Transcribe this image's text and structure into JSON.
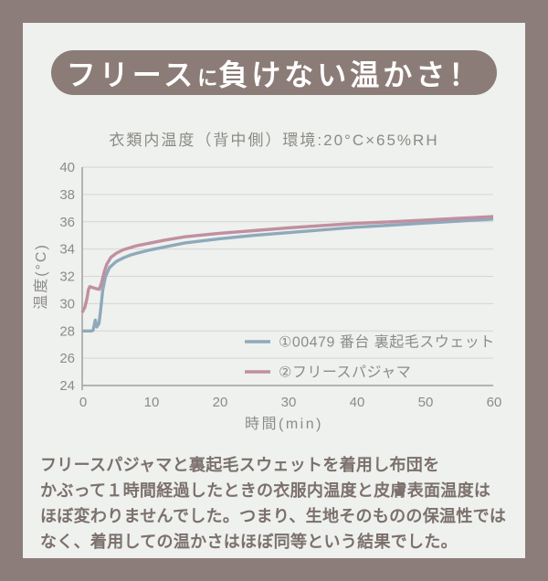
{
  "page": {
    "background": "#8d7d7a",
    "panel_background": "#eef1ee"
  },
  "header": {
    "title_part1": "フリース",
    "title_part2": "に",
    "title_part3": "負けない温かさ！",
    "pill_color": "#8c7c77",
    "text_color": "#ffffff"
  },
  "subtitle": "衣類内温度（背中側）環境:20°C×65%RH",
  "chart_data": {
    "type": "line",
    "title": "衣類内温度（背中側）環境:20°C×65%RH",
    "xlabel": "時間(min)",
    "ylabel": "温度(°C)",
    "xlim": [
      0,
      60
    ],
    "ylim": [
      24,
      40
    ],
    "xticks": [
      0,
      10,
      20,
      30,
      40,
      50,
      60
    ],
    "yticks": [
      24,
      26,
      28,
      30,
      32,
      34,
      36,
      38,
      40
    ],
    "grid": "horizontal",
    "legend_position": "inside-bottom-right",
    "axis_color": "#abaaa7",
    "grid_color": "#d6d5d3",
    "tick_color": "#8d8b88",
    "series": [
      {
        "name": "①00479 番台 裏起毛スウェット",
        "color": "#8fa9bb",
        "points": [
          [
            0,
            28.0
          ],
          [
            1.4,
            28.0
          ],
          [
            1.6,
            28.05
          ],
          [
            1.9,
            28.8
          ],
          [
            2.15,
            28.3
          ],
          [
            2.45,
            28.55
          ],
          [
            2.7,
            29.6
          ],
          [
            3.0,
            31.0
          ],
          [
            3.4,
            32.0
          ],
          [
            4.0,
            32.65
          ],
          [
            5,
            33.1
          ],
          [
            6,
            33.35
          ],
          [
            7,
            33.55
          ],
          [
            8,
            33.7
          ],
          [
            10,
            33.95
          ],
          [
            12,
            34.15
          ],
          [
            15,
            34.45
          ],
          [
            20,
            34.75
          ],
          [
            25,
            35.0
          ],
          [
            30,
            35.2
          ],
          [
            35,
            35.4
          ],
          [
            40,
            35.6
          ],
          [
            45,
            35.75
          ],
          [
            50,
            35.9
          ],
          [
            55,
            36.05
          ],
          [
            60,
            36.2
          ]
        ]
      },
      {
        "name": "②フリースパジャマ",
        "color": "#c18fa1",
        "points": [
          [
            0,
            29.35
          ],
          [
            0.4,
            29.75
          ],
          [
            0.7,
            30.4
          ],
          [
            0.9,
            31.0
          ],
          [
            1.1,
            31.25
          ],
          [
            1.4,
            31.2
          ],
          [
            2.0,
            31.1
          ],
          [
            2.5,
            31.05
          ],
          [
            2.8,
            31.5
          ],
          [
            3.2,
            32.3
          ],
          [
            3.6,
            32.9
          ],
          [
            4.2,
            33.4
          ],
          [
            5,
            33.7
          ],
          [
            6,
            33.95
          ],
          [
            7,
            34.1
          ],
          [
            8,
            34.25
          ],
          [
            10,
            34.45
          ],
          [
            12,
            34.65
          ],
          [
            15,
            34.9
          ],
          [
            20,
            35.15
          ],
          [
            25,
            35.35
          ],
          [
            30,
            35.55
          ],
          [
            35,
            35.72
          ],
          [
            40,
            35.88
          ],
          [
            45,
            36.0
          ],
          [
            50,
            36.12
          ],
          [
            55,
            36.25
          ],
          [
            60,
            36.38
          ]
        ]
      }
    ]
  },
  "description": {
    "lines": [
      "フリースパジャマと裏起毛スウェットを着用し布団を",
      "かぶって１時間経過したときの衣服内温度と皮膚表面温度は",
      "ほぼ変わりませんでした。つまり、生地そのものの保温性では",
      "なく、着用しての温かさはほぼ同等という結果でした。"
    ]
  }
}
